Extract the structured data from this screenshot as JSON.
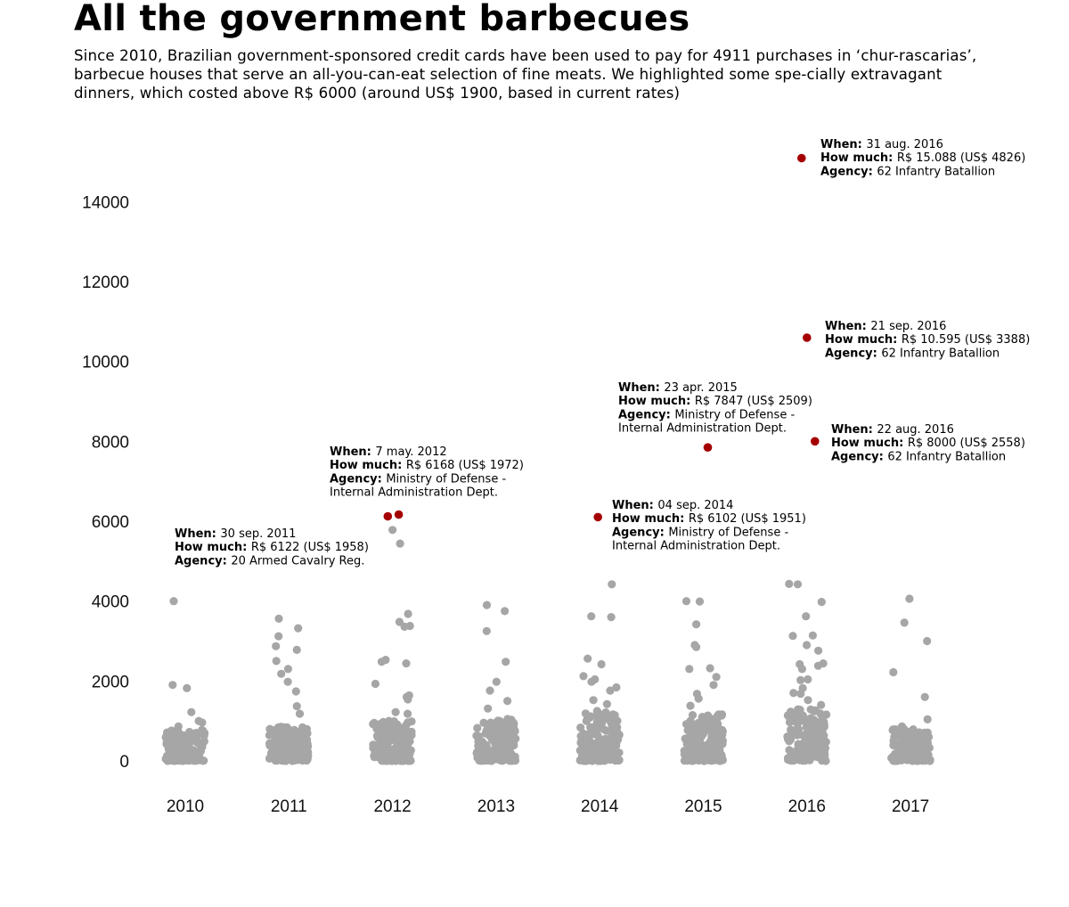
{
  "header": {
    "title": "All the government barbecues",
    "subtitle": "Since 2010, Brazilian government-sponsored credit cards have been used to pay for 4911 purchases in ‘chur-rascarias’, barbecue houses that serve an all-you-can-eat selection of fine meats. We highlighted some spe-cially extravagant dinners, which costed above R$ 6000 (around US$ 1900, based in current rates)"
  },
  "colors": {
    "highlight": "#a50000",
    "regular": "#a6a6a6"
  },
  "chart_data": {
    "type": "scatter",
    "title": "All the government barbecues",
    "xlabel": "",
    "ylabel": "",
    "categories": [
      "2010",
      "2011",
      "2012",
      "2013",
      "2014",
      "2015",
      "2016",
      "2017"
    ],
    "ylim": [
      -500,
      15500
    ],
    "yticks": [
      0,
      2000,
      4000,
      6000,
      8000,
      10000,
      12000,
      14000
    ],
    "grid": false,
    "legend": "none",
    "labels": {
      "when": "When:",
      "how_much": "How much:",
      "agency": "Agency:"
    },
    "highlighted": [
      {
        "year": "2011",
        "value": 6122,
        "when": "30 sep. 2011",
        "how_much": "R$ 6122 (US$ 1958)",
        "agency": [
          "20 Armed Cavalry Reg."
        ]
      },
      {
        "year": "2012",
        "value": 6168,
        "when": "7 may. 2012",
        "how_much": "R$ 6168 (US$ 1972)",
        "agency": [
          "Ministry of Defense -",
          "Internal Administration Dept."
        ]
      },
      {
        "year": "2014",
        "value": 6102,
        "when": "04 sep. 2014",
        "how_much": "R$ 6102 (US$ 1951)",
        "agency": [
          "Ministry of Defense -",
          "Internal Administration Dept."
        ]
      },
      {
        "year": "2015",
        "value": 7847,
        "when": "23 apr. 2015",
        "how_much": "R$ 7847 (US$ 2509)",
        "agency": [
          "Ministry of Defense -",
          "Internal Administration Dept."
        ]
      },
      {
        "year": "2016",
        "value": 15088,
        "when": "31 aug. 2016",
        "how_much": "R$ 15.088 (US$ 4826)",
        "agency": [
          "62 Infantry Batallion"
        ]
      },
      {
        "year": "2016",
        "value": 10595,
        "when": "21 sep. 2016",
        "how_much": "R$ 10.595 (US$ 3388)",
        "agency": [
          "62 Infantry Batallion"
        ]
      },
      {
        "year": "2016",
        "value": 8000,
        "when": "22 aug. 2016",
        "how_much": "R$ 8000 (US$ 2558)",
        "agency": [
          "62 Infantry Batallion"
        ]
      }
    ],
    "notable_points": [
      {
        "year": "2010",
        "values": [
          4000,
          1900,
          1820,
          1220,
          1000,
          960,
          860
        ]
      },
      {
        "year": "2011",
        "values": [
          3560,
          3320,
          3120,
          2870,
          2780,
          2500,
          2300,
          2180,
          1980,
          1740,
          1370,
          1180
        ]
      },
      {
        "year": "2012",
        "values": [
          5780,
          5440,
          3680,
          3480,
          3380,
          3360,
          2530,
          2480,
          2440,
          1930,
          1640,
          1600,
          1540,
          1220,
          1180
        ]
      },
      {
        "year": "2013",
        "values": [
          3900,
          3750,
          3250,
          2480,
          1980,
          1760,
          1500,
          1310
        ]
      },
      {
        "year": "2014",
        "values": [
          4420,
          3620,
          3600,
          2560,
          2420,
          2120,
          2040,
          1980,
          1840,
          1760,
          1520,
          1420
        ]
      },
      {
        "year": "2015",
        "values": [
          4000,
          3990,
          3420,
          2900,
          2850,
          2320,
          2300,
          2100,
          1900,
          1680,
          1560,
          1380
        ]
      },
      {
        "year": "2016",
        "values": [
          4430,
          4420,
          3980,
          3620,
          3140,
          3130,
          2900,
          2760,
          2440,
          2420,
          2380,
          2300,
          2040,
          2020,
          1820,
          1700,
          1680,
          1520,
          1400
        ]
      },
      {
        "year": "2017",
        "values": [
          4060,
          3460,
          3000,
          2220,
          1600,
          1040,
          860,
          800
        ]
      }
    ],
    "cluster_max": {
      "2010": 780,
      "2011": 900,
      "2012": 1000,
      "2013": 1050,
      "2014": 1250,
      "2015": 1200,
      "2016": 1300,
      "2017": 800
    }
  }
}
